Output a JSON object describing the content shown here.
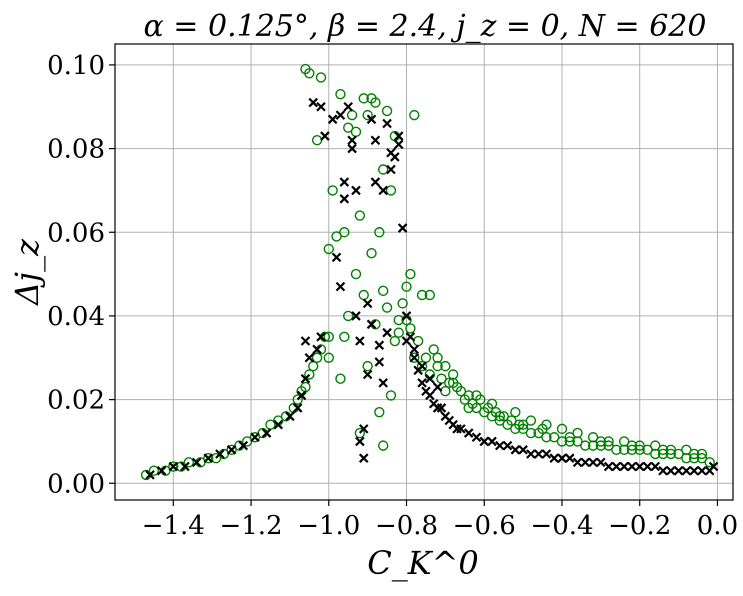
{
  "chart_data": {
    "type": "scatter",
    "title": "α = 0.125°, β = 2.4, j_z = 0, N = 620",
    "xlabel": "C_K^0",
    "ylabel": "Δj_z",
    "xlim": [
      -1.55,
      0.04
    ],
    "ylim": [
      -0.004,
      0.105
    ],
    "xticks": [
      -1.4,
      -1.2,
      -1.0,
      -0.8,
      -0.6,
      -0.4,
      -0.2,
      0.0
    ],
    "xtick_labels": [
      "−1.4",
      "−1.2",
      "−1.0",
      "−0.8",
      "−0.6",
      "−0.4",
      "−0.2",
      "0.0"
    ],
    "yticks": [
      0.0,
      0.02,
      0.04,
      0.06,
      0.08,
      0.1
    ],
    "ytick_labels": [
      "0.00",
      "0.02",
      "0.04",
      "0.06",
      "0.08",
      "0.10"
    ],
    "grid": true,
    "colors": {
      "open_circle": "#008000",
      "cross": "#000000"
    },
    "series": [
      {
        "marker": "open-circle",
        "color": "#008000",
        "x": [
          -1.47,
          -1.45,
          -1.42,
          -1.4,
          -1.38,
          -1.36,
          -1.33,
          -1.31,
          -1.29,
          -1.27,
          -1.25,
          -1.23,
          -1.21,
          -1.19,
          -1.17,
          -1.15,
          -1.13,
          -1.11,
          -1.09,
          -1.08,
          -1.07,
          -1.06,
          -1.05,
          -1.04,
          -1.03,
          -1.02,
          -1.01,
          -1.0,
          -1.06,
          -1.05,
          -1.03,
          -1.02,
          -1.0,
          -0.99,
          -0.98,
          -0.97,
          -0.96,
          -0.95,
          -0.94,
          -0.93,
          -0.92,
          -0.91,
          -0.9,
          -0.89,
          -0.88,
          -0.87,
          -0.86,
          -0.85,
          -0.84,
          -0.83,
          -0.82,
          -0.81,
          -0.8,
          -0.79,
          -0.78,
          -0.77,
          -0.76,
          -0.75,
          -0.74,
          -0.73,
          -0.72,
          -0.71,
          -0.7,
          -0.69,
          -0.68,
          -0.67,
          -0.66,
          -0.65,
          -0.64,
          -0.63,
          -0.62,
          -0.61,
          -0.6,
          -0.59,
          -0.58,
          -0.57,
          -0.56,
          -0.55,
          -0.54,
          -0.53,
          -0.52,
          -0.51,
          -0.5,
          -0.48,
          -0.46,
          -0.44,
          -0.42,
          -0.4,
          -0.38,
          -0.36,
          -0.34,
          -0.32,
          -0.3,
          -0.28,
          -0.26,
          -0.24,
          -0.22,
          -0.2,
          -0.18,
          -0.16,
          -0.14,
          -0.12,
          -0.1,
          -0.08,
          -0.06,
          -0.04,
          -0.02,
          -0.72,
          -0.68,
          -0.62,
          -0.58,
          -0.52,
          -0.48,
          -0.44,
          -0.4,
          -0.36,
          -0.32,
          -0.28,
          -0.24,
          -0.2,
          -0.16,
          -0.12,
          -0.08,
          -0.04,
          -0.7,
          -0.64,
          -0.56,
          -0.5,
          -0.45,
          -0.38,
          -0.3,
          -0.22,
          -0.14,
          -0.06,
          -1.0,
          -0.97,
          -0.95,
          -0.93,
          -0.91,
          -0.89,
          -0.87,
          -0.85,
          -0.83,
          -0.96,
          -0.9,
          -0.88,
          -0.86,
          -0.84,
          -0.8,
          -0.78,
          -0.92,
          -0.86,
          -0.82,
          -0.79,
          -0.76,
          -0.74
        ],
        "y": [
          0.002,
          0.003,
          0.003,
          0.004,
          0.004,
          0.005,
          0.005,
          0.006,
          0.006,
          0.007,
          0.008,
          0.009,
          0.01,
          0.011,
          0.012,
          0.014,
          0.015,
          0.016,
          0.018,
          0.02,
          0.022,
          0.023,
          0.026,
          0.028,
          0.03,
          0.032,
          0.035,
          0.03,
          0.099,
          0.098,
          0.082,
          0.097,
          0.056,
          0.07,
          0.059,
          0.093,
          0.06,
          0.085,
          0.088,
          0.084,
          0.064,
          0.092,
          0.088,
          0.092,
          0.091,
          0.06,
          0.075,
          0.089,
          0.07,
          0.083,
          0.036,
          0.043,
          0.039,
          0.037,
          0.03,
          0.034,
          0.028,
          0.03,
          0.026,
          0.032,
          0.03,
          0.025,
          0.028,
          0.024,
          0.026,
          0.023,
          0.022,
          0.02,
          0.021,
          0.019,
          0.018,
          0.02,
          0.017,
          0.018,
          0.016,
          0.017,
          0.015,
          0.016,
          0.014,
          0.015,
          0.013,
          0.014,
          0.013,
          0.012,
          0.012,
          0.011,
          0.011,
          0.01,
          0.01,
          0.01,
          0.009,
          0.009,
          0.009,
          0.009,
          0.008,
          0.008,
          0.008,
          0.008,
          0.008,
          0.007,
          0.007,
          0.007,
          0.007,
          0.006,
          0.006,
          0.006,
          0.005,
          0.028,
          0.024,
          0.021,
          0.019,
          0.017,
          0.015,
          0.014,
          0.013,
          0.012,
          0.011,
          0.01,
          0.01,
          0.009,
          0.009,
          0.008,
          0.008,
          0.007,
          0.022,
          0.018,
          0.016,
          0.014,
          0.013,
          0.011,
          0.01,
          0.009,
          0.008,
          0.007,
          0.035,
          0.025,
          0.04,
          0.05,
          0.045,
          0.055,
          0.017,
          0.042,
          0.034,
          0.035,
          0.028,
          0.038,
          0.046,
          0.021,
          0.047,
          0.088,
          0.012,
          0.009,
          0.039,
          0.05,
          0.045,
          0.045
        ]
      },
      {
        "marker": "x",
        "color": "#000000",
        "x": [
          -1.46,
          -1.43,
          -1.4,
          -1.37,
          -1.34,
          -1.31,
          -1.28,
          -1.25,
          -1.22,
          -1.19,
          -1.16,
          -1.13,
          -1.1,
          -1.08,
          -1.07,
          -1.06,
          -1.05,
          -1.03,
          -1.02,
          -1.06,
          -1.04,
          -1.02,
          -1.01,
          -0.99,
          -0.98,
          -0.97,
          -0.96,
          -0.95,
          -0.94,
          -0.93,
          -0.92,
          -0.91,
          -0.9,
          -0.89,
          -0.88,
          -0.87,
          -0.86,
          -0.85,
          -0.84,
          -0.83,
          -0.82,
          -0.81,
          -0.8,
          -0.79,
          -0.78,
          -0.77,
          -0.76,
          -0.75,
          -0.74,
          -0.73,
          -0.72,
          -0.71,
          -0.7,
          -0.69,
          -0.68,
          -0.67,
          -0.66,
          -0.64,
          -0.62,
          -0.6,
          -0.58,
          -0.56,
          -0.54,
          -0.52,
          -0.5,
          -0.48,
          -0.46,
          -0.44,
          -0.42,
          -0.4,
          -0.38,
          -0.36,
          -0.34,
          -0.32,
          -0.3,
          -0.28,
          -0.26,
          -0.24,
          -0.22,
          -0.2,
          -0.18,
          -0.16,
          -0.14,
          -0.12,
          -0.1,
          -0.08,
          -0.06,
          -0.04,
          -0.02,
          -0.01,
          -0.92,
          -0.91,
          -0.96,
          -0.94,
          -0.88,
          -0.86,
          -0.84,
          -0.82,
          -0.9,
          -0.87,
          -0.85,
          -0.8,
          -0.78,
          -0.76,
          -0.74,
          -0.72,
          -0.97,
          -0.93,
          -0.89
        ],
        "y": [
          0.002,
          0.003,
          0.004,
          0.004,
          0.005,
          0.006,
          0.007,
          0.008,
          0.009,
          0.011,
          0.012,
          0.014,
          0.016,
          0.018,
          0.021,
          0.025,
          0.03,
          0.032,
          0.035,
          0.034,
          0.091,
          0.09,
          0.083,
          0.087,
          0.054,
          0.088,
          0.068,
          0.09,
          0.082,
          0.07,
          0.034,
          0.006,
          0.026,
          0.087,
          0.072,
          0.033,
          0.024,
          0.086,
          0.079,
          0.078,
          0.083,
          0.061,
          0.04,
          0.035,
          0.03,
          0.027,
          0.024,
          0.022,
          0.021,
          0.019,
          0.018,
          0.018,
          0.016,
          0.015,
          0.014,
          0.013,
          0.013,
          0.012,
          0.011,
          0.01,
          0.01,
          0.009,
          0.009,
          0.008,
          0.008,
          0.007,
          0.007,
          0.007,
          0.006,
          0.006,
          0.006,
          0.005,
          0.005,
          0.005,
          0.005,
          0.004,
          0.004,
          0.004,
          0.004,
          0.004,
          0.004,
          0.004,
          0.003,
          0.003,
          0.003,
          0.003,
          0.003,
          0.003,
          0.003,
          0.004,
          0.01,
          0.013,
          0.072,
          0.08,
          0.082,
          0.07,
          0.075,
          0.081,
          0.043,
          0.029,
          0.036,
          0.034,
          0.032,
          0.028,
          0.025,
          0.023,
          0.047,
          0.04,
          0.038
        ]
      }
    ]
  }
}
